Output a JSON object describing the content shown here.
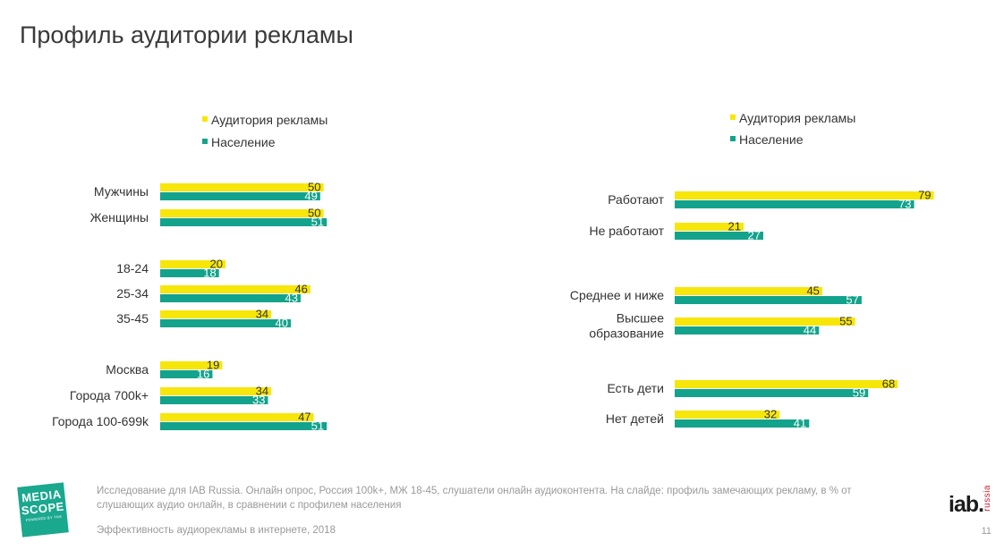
{
  "title": "Профиль аудитории рекламы",
  "colors": {
    "audience": "#f7e60a",
    "population": "#13a38c",
    "label_text": "#333333",
    "pop_value_text": "#ffffff"
  },
  "chart_data": [
    {
      "type": "bar",
      "orientation": "horizontal",
      "legend_position": "top-left",
      "series": [
        {
          "name": "Аудитория рекламы",
          "values": [
            50,
            50,
            20,
            46,
            34,
            19,
            34,
            47
          ]
        },
        {
          "name": "Население",
          "values": [
            49,
            51,
            18,
            43,
            40,
            16,
            33,
            51
          ]
        }
      ],
      "categories": [
        "Мужчины",
        "Женщины",
        "18-24",
        "25-34",
        "35-45",
        "Москва",
        "Города 700k+",
        "Города 100-699k"
      ],
      "groups": [
        [
          0,
          1
        ],
        [
          2,
          3,
          4
        ],
        [
          5,
          6,
          7
        ]
      ],
      "xlim": [
        0,
        100
      ]
    },
    {
      "type": "bar",
      "orientation": "horizontal",
      "legend_position": "top-left",
      "series": [
        {
          "name": "Аудитория рекламы",
          "values": [
            79,
            21,
            45,
            55,
            68,
            32
          ]
        },
        {
          "name": "Население",
          "values": [
            73,
            27,
            57,
            44,
            59,
            41
          ]
        }
      ],
      "categories": [
        "Работают",
        "Не работают",
        "Среднее и ниже",
        "Высшее образование",
        "Есть дети",
        "Нет детей"
      ],
      "category_lines": [
        [
          "Работают"
        ],
        [
          "Не работают"
        ],
        [
          "Среднее и ниже"
        ],
        [
          "Высшее",
          "образование"
        ],
        [
          "Есть дети"
        ],
        [
          "Нет детей"
        ]
      ],
      "groups": [
        [
          0,
          1
        ],
        [
          2,
          3
        ],
        [
          4,
          5
        ]
      ],
      "xlim": [
        0,
        100
      ]
    }
  ],
  "footer": {
    "note": "Исследование для IAB Russia. Онлайн опрос, Россия 100k+, МЖ 18-45, слушатели онлайн аудиоконтента. На слайде: профиль замечающих рекламу, в % от слушающих аудио онлайн, в сравнении с профилем населения",
    "source": "Эффективность аудиорекламы в интернете, 2018",
    "page_number": "11"
  },
  "logos": {
    "mediascope": {
      "line1": "MEDIA",
      "line2": "SCOPE",
      "tagline": "POWERED BY TNS"
    },
    "iab": {
      "main": "iab.",
      "sub": "russia"
    }
  }
}
